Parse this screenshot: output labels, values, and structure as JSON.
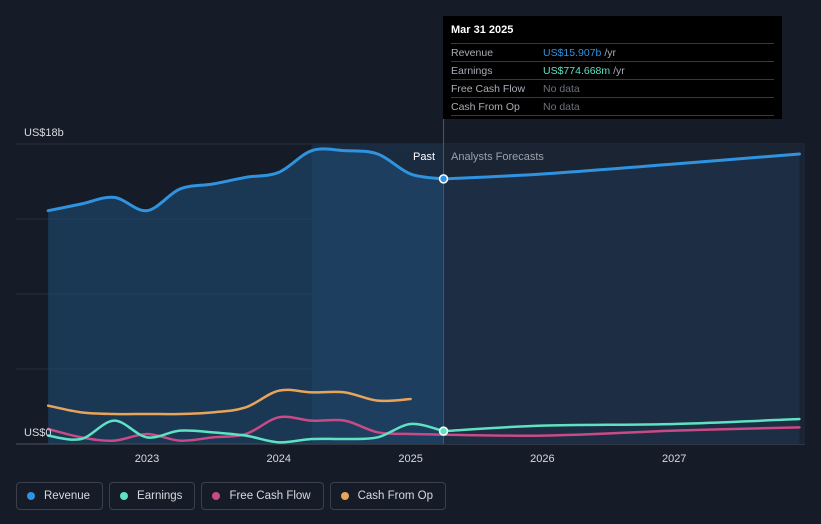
{
  "chart_data": {
    "type": "line",
    "ylabel_top": "US$18b",
    "ylabel_bottom": "US$0",
    "ylim": [
      0,
      18
    ],
    "x_ticks": [
      "2023",
      "2024",
      "2025",
      "2026",
      "2027"
    ],
    "past_label": "Past",
    "forecast_label": "Analysts Forecasts",
    "divider_date": 2025.25,
    "series": [
      {
        "name": "Revenue",
        "color": "#2f93e0",
        "x": [
          2022.25,
          2022.5,
          2022.75,
          2023.0,
          2023.25,
          2023.5,
          2023.75,
          2024.0,
          2024.25,
          2024.5,
          2024.75,
          2025.0,
          2025.25
        ],
        "values": [
          14.0,
          14.4,
          14.8,
          14.0,
          15.3,
          15.6,
          16.0,
          16.3,
          17.6,
          17.6,
          17.4,
          16.2,
          15.907
        ]
      },
      {
        "name": "Revenue forecast",
        "color": "#2f93e0",
        "x": [
          2025.25,
          2026.0,
          2027.0,
          2027.95
        ],
        "values": [
          15.907,
          16.2,
          16.8,
          17.4
        ]
      },
      {
        "name": "Earnings",
        "color": "#5ee2c2",
        "x": [
          2022.25,
          2022.5,
          2022.75,
          2023.0,
          2023.25,
          2023.5,
          2023.75,
          2024.0,
          2024.25,
          2024.5,
          2024.75,
          2025.0,
          2025.25
        ],
        "values": [
          0.5,
          0.3,
          1.4,
          0.4,
          0.8,
          0.7,
          0.5,
          0.1,
          0.3,
          0.3,
          0.4,
          1.2,
          0.775
        ]
      },
      {
        "name": "Earnings forecast",
        "color": "#5ee2c2",
        "x": [
          2025.25,
          2026.0,
          2027.0,
          2027.95
        ],
        "values": [
          0.775,
          1.1,
          1.2,
          1.5
        ]
      },
      {
        "name": "Free Cash Flow",
        "color": "#c94a85",
        "x": [
          2022.25,
          2022.5,
          2022.75,
          2023.0,
          2023.25,
          2023.5,
          2023.75,
          2024.0,
          2024.25,
          2024.5,
          2024.75,
          2025.0
        ],
        "values": [
          0.9,
          0.4,
          0.2,
          0.6,
          0.2,
          0.4,
          0.6,
          1.6,
          1.4,
          1.4,
          0.7,
          0.6
        ]
      },
      {
        "name": "Free Cash Flow forecast",
        "color": "#c94a85",
        "x": [
          2025.0,
          2026.0,
          2027.0,
          2027.95
        ],
        "values": [
          0.6,
          0.5,
          0.8,
          1.0
        ]
      },
      {
        "name": "Cash From Op",
        "color": "#e8a55a",
        "x": [
          2022.25,
          2022.5,
          2022.75,
          2023.0,
          2023.25,
          2023.5,
          2023.75,
          2024.0,
          2024.25,
          2024.5,
          2024.75,
          2025.0
        ],
        "values": [
          2.3,
          1.9,
          1.8,
          1.8,
          1.8,
          1.9,
          2.2,
          3.2,
          3.1,
          3.1,
          2.6,
          2.7
        ]
      }
    ]
  },
  "tooltip": {
    "date": "Mar 31 2025",
    "rows": [
      {
        "label": "Revenue",
        "value": "US$15.907b",
        "unit": "/yr",
        "color": "#2f93e0"
      },
      {
        "label": "Earnings",
        "value": "US$774.668m",
        "unit": "/yr",
        "color": "#5ee2c2"
      },
      {
        "label": "Free Cash Flow",
        "value": "No data",
        "unit": "",
        "color": "#6b727c"
      },
      {
        "label": "Cash From Op",
        "value": "No data",
        "unit": "",
        "color": "#6b727c"
      }
    ]
  },
  "legend": [
    {
      "label": "Revenue",
      "color": "#2f93e0"
    },
    {
      "label": "Earnings",
      "color": "#5ee2c2"
    },
    {
      "label": "Free Cash Flow",
      "color": "#c94a85"
    },
    {
      "label": "Cash From Op",
      "color": "#e8a55a"
    }
  ]
}
